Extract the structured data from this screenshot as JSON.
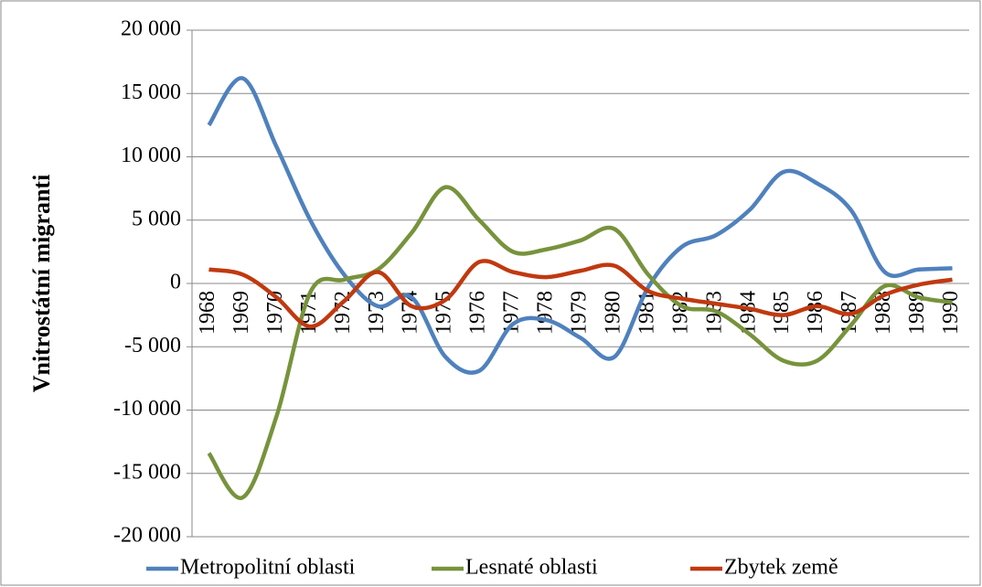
{
  "chart_data": {
    "type": "line",
    "y_label": "Vnitrostátní migranti",
    "categories": [
      "1968",
      "1969",
      "1970",
      "1971",
      "1972",
      "1973",
      "1974",
      "1975",
      "1976",
      "1977",
      "1978",
      "1979",
      "1980",
      "1981",
      "1982",
      "1983",
      "1984",
      "1985",
      "1986",
      "1987",
      "1988",
      "1989",
      "1990"
    ],
    "series": [
      {
        "name": "Metropolitní oblasti",
        "color": "#4f81bd",
        "values": [
          12500,
          16200,
          10800,
          5000,
          700,
          -1800,
          -1100,
          -5800,
          -6900,
          -3200,
          -2900,
          -4300,
          -5800,
          -300,
          2900,
          3800,
          5800,
          8800,
          7900,
          5800,
          900,
          1100,
          1200
        ]
      },
      {
        "name": "Lesnaté oblasti",
        "color": "#77933c",
        "values": [
          -13400,
          -16900,
          -10500,
          -700,
          300,
          1100,
          4000,
          7600,
          5000,
          2500,
          2700,
          3400,
          4300,
          700,
          -1800,
          -2200,
          -4000,
          -6100,
          -6100,
          -3300,
          -200,
          -1100,
          -1500
        ]
      },
      {
        "name": "Zbytek země",
        "color": "#c0390f",
        "values": [
          1100,
          700,
          -1100,
          -3400,
          -1400,
          900,
          -1800,
          -1300,
          1700,
          900,
          500,
          1000,
          1400,
          -600,
          -1200,
          -1600,
          -2000,
          -2500,
          -1800,
          -2400,
          -900,
          -100,
          300
        ]
      }
    ],
    "ylim": [
      -20000,
      20000
    ],
    "yticks": [
      {
        "value": -20000,
        "label": "-20 000"
      },
      {
        "value": -15000,
        "label": "-15 000"
      },
      {
        "value": -10000,
        "label": "-10 000"
      },
      {
        "value": -5000,
        "label": "-5 000"
      },
      0,
      {
        "value": 5000,
        "label": "5 000"
      },
      {
        "value": 10000,
        "label": "10 000"
      },
      {
        "value": 15000,
        "label": "15 000"
      },
      {
        "value": 20000,
        "label": "20 000"
      }
    ],
    "grid": true,
    "legend": "bottom"
  }
}
